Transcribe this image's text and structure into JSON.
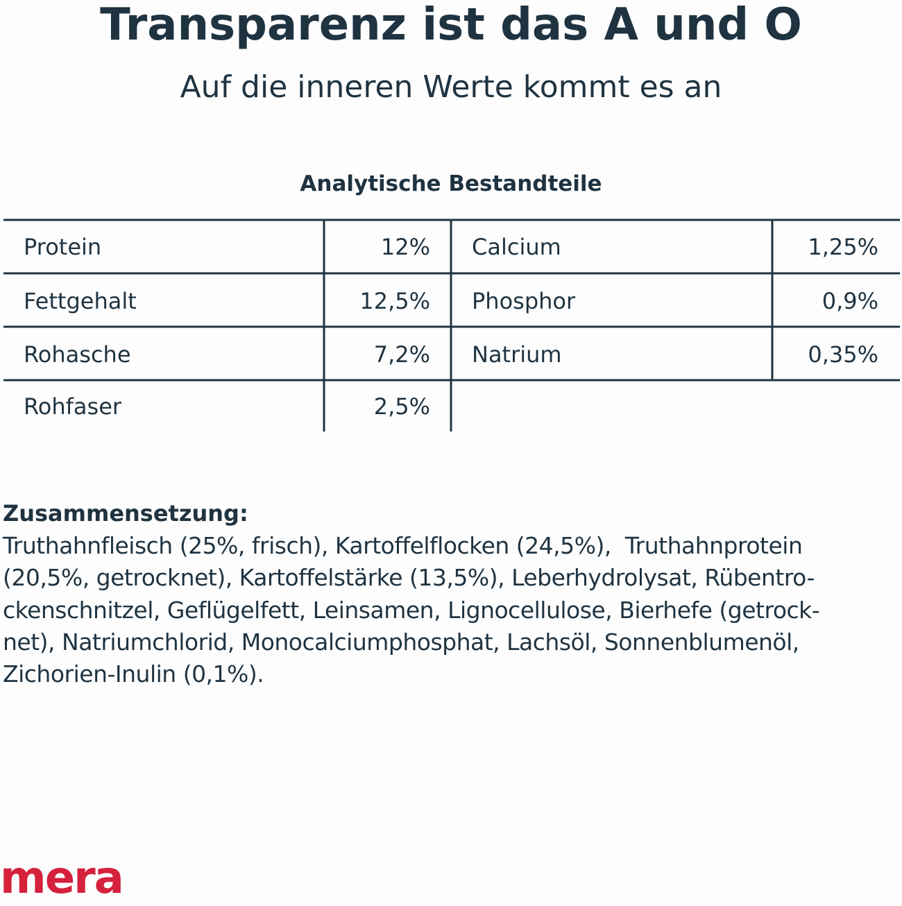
{
  "header": {
    "title": "Transparenz ist das A und O",
    "subtitle": "Auf die inneren Werte kommt es an"
  },
  "table": {
    "title": "Analytische Bestandteile",
    "rows": [
      [
        "Protein",
        "12%",
        "Calcium",
        "1,25%"
      ],
      [
        "Fettgehalt",
        "12,5%",
        "Phosphor",
        "0,9%"
      ],
      [
        "Rohasche",
        "7,2%",
        "Natrium",
        "0,35%"
      ],
      [
        "Rohfaser",
        "2,5%"
      ]
    ]
  },
  "composition": {
    "title": "Zusammensetzung:",
    "lines": [
      "Truthahnfleisch (25%, frisch), Kartoffelflocken (24,5%),  Truthahnprotein",
      "(20,5%, getrocknet), Kartoffelstärke (13,5%), Leberhydrolysat, Rübentro-",
      "ckenschnitzel, Geflügelfett, Leinsamen, Lignocellulose, Bierhefe (getrock-",
      "net), Natriumchlorid, Monocalciumphosphat, Lachsöl, Sonnenblumenöl,",
      "Zichorien-Inulin (0,1%)."
    ]
  },
  "brand": "mera"
}
